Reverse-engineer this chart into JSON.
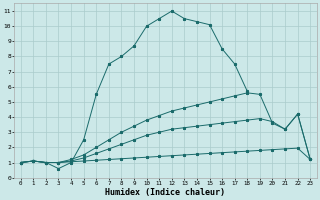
{
  "xlabel": "Humidex (Indice chaleur)",
  "background_color": "#cce8e8",
  "line_color": "#1a6b6b",
  "grid_color": "#aacccc",
  "xlim": [
    -0.5,
    23.5
  ],
  "ylim": [
    0,
    11.5
  ],
  "xticks": [
    0,
    1,
    2,
    3,
    4,
    5,
    6,
    7,
    8,
    9,
    10,
    11,
    12,
    13,
    14,
    15,
    16,
    17,
    18,
    19,
    20,
    21,
    22,
    23
  ],
  "yticks": [
    0,
    1,
    2,
    3,
    4,
    5,
    6,
    7,
    8,
    9,
    10,
    11
  ],
  "series": [
    {
      "x": [
        0,
        1,
        2,
        3,
        4,
        5,
        6,
        7,
        8,
        9,
        10,
        11,
        12,
        13,
        14,
        15,
        16,
        17,
        18,
        19,
        20,
        21,
        22,
        23
      ],
      "y": [
        1.0,
        1.1,
        1.0,
        1.0,
        1.05,
        1.1,
        1.15,
        1.2,
        1.25,
        1.3,
        1.35,
        1.4,
        1.45,
        1.5,
        1.55,
        1.6,
        1.65,
        1.7,
        1.75,
        1.8,
        1.85,
        1.9,
        1.95,
        1.2
      ]
    },
    {
      "x": [
        0,
        1,
        2,
        3,
        4,
        5,
        6,
        7,
        8,
        9,
        10,
        11,
        12,
        13,
        14,
        15,
        16,
        17,
        18,
        19,
        20,
        21,
        22,
        23
      ],
      "y": [
        1.0,
        1.1,
        1.0,
        1.0,
        1.1,
        1.3,
        1.6,
        1.9,
        2.2,
        2.5,
        2.8,
        3.0,
        3.2,
        3.3,
        3.4,
        3.5,
        3.6,
        3.7,
        3.8,
        3.9,
        3.7,
        3.2,
        4.2,
        1.2
      ]
    },
    {
      "x": [
        0,
        1,
        2,
        3,
        4,
        5,
        6,
        7,
        8,
        9,
        10,
        11,
        12,
        13,
        14,
        15,
        16,
        17,
        18,
        19,
        20,
        21,
        22,
        23
      ],
      "y": [
        1.0,
        1.1,
        1.0,
        0.6,
        1.0,
        2.5,
        5.5,
        7.5,
        8.0,
        8.7,
        10.0,
        10.5,
        11.0,
        10.5,
        10.3,
        10.1,
        8.5,
        7.5,
        5.7,
        null,
        null,
        null,
        null,
        null
      ]
    },
    {
      "x": [
        0,
        1,
        2,
        3,
        4,
        5,
        6,
        7,
        8,
        9,
        10,
        11,
        12,
        13,
        14,
        15,
        16,
        17,
        18,
        19,
        20,
        21,
        22,
        23
      ],
      "y": [
        1.0,
        1.1,
        1.0,
        1.0,
        1.2,
        1.5,
        2.0,
        2.5,
        3.0,
        3.4,
        3.8,
        4.1,
        4.4,
        4.6,
        4.8,
        5.0,
        5.2,
        5.4,
        5.6,
        5.5,
        3.6,
        3.2,
        4.2,
        1.2
      ]
    }
  ]
}
